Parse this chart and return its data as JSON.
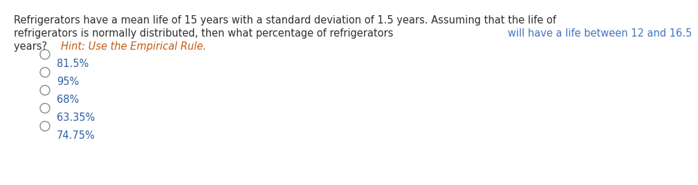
{
  "background_color": "#ffffff",
  "line1": "Refrigerators have a mean life of 15 years with a standard deviation of 1.5 years. Assuming that the life of",
  "line1_color": "#2e2e2e",
  "line2_black": "refrigerators is normally distributed, then what percentage of refrigerators ",
  "line2_blue": "will have a life between 12 and 16.5",
  "line2_black_color": "#2e2e2e",
  "line2_blue_color": "#4472c4",
  "line3_black": "years? ",
  "line3_hint": "Hint: Use the Empirical Rule.",
  "line3_black_color": "#2e2e2e",
  "line3_hint_color": "#c55a11",
  "choices": [
    "81.5%",
    "95%",
    "68%",
    "63.35%",
    "74.75%"
  ],
  "choice_color": "#2b5fa5",
  "circle_color": "#888888",
  "font_size": 10.5,
  "choice_font_size": 10.5
}
